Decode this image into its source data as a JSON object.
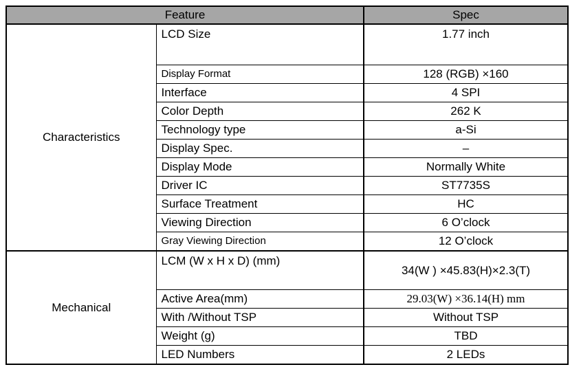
{
  "header": {
    "feature": "Feature",
    "spec": "Spec"
  },
  "groups": [
    {
      "name": "Characteristics",
      "rows": [
        {
          "feature": "LCD Size",
          "spec": "1.77 inch"
        },
        {
          "feature": "Display Format",
          "spec": "128 (RGB) ×160"
        },
        {
          "feature": "Interface",
          "spec": "4 SPI"
        },
        {
          "feature": "Color Depth",
          "spec": "262 K"
        },
        {
          "feature": "Technology type",
          "spec": "a-Si"
        },
        {
          "feature": "Display Spec.",
          "spec": "–"
        },
        {
          "feature": "Display Mode",
          "spec": "Normally White"
        },
        {
          "feature": "Driver IC",
          "spec": "ST7735S"
        },
        {
          "feature": "Surface Treatment",
          "spec": "HC"
        },
        {
          "feature": "Viewing Direction",
          "spec": "6 O’clock"
        },
        {
          "feature": "Gray Viewing Direction",
          "spec": "12 O’clock"
        }
      ]
    },
    {
      "name": "Mechanical",
      "rows": [
        {
          "feature": "LCM (W x H x D) (mm)",
          "spec": "34(W ) ×45.83(H)×2.3(T)"
        },
        {
          "feature": "Active Area(mm)",
          "spec": "29.03(W)  ×36.14(H)  mm"
        },
        {
          "feature": "With /Without TSP",
          "spec": "Without TSP"
        },
        {
          "feature": "Weight (g)",
          "spec": "TBD"
        },
        {
          "feature": "LED Numbers",
          "spec": "2 LEDs"
        }
      ]
    }
  ]
}
